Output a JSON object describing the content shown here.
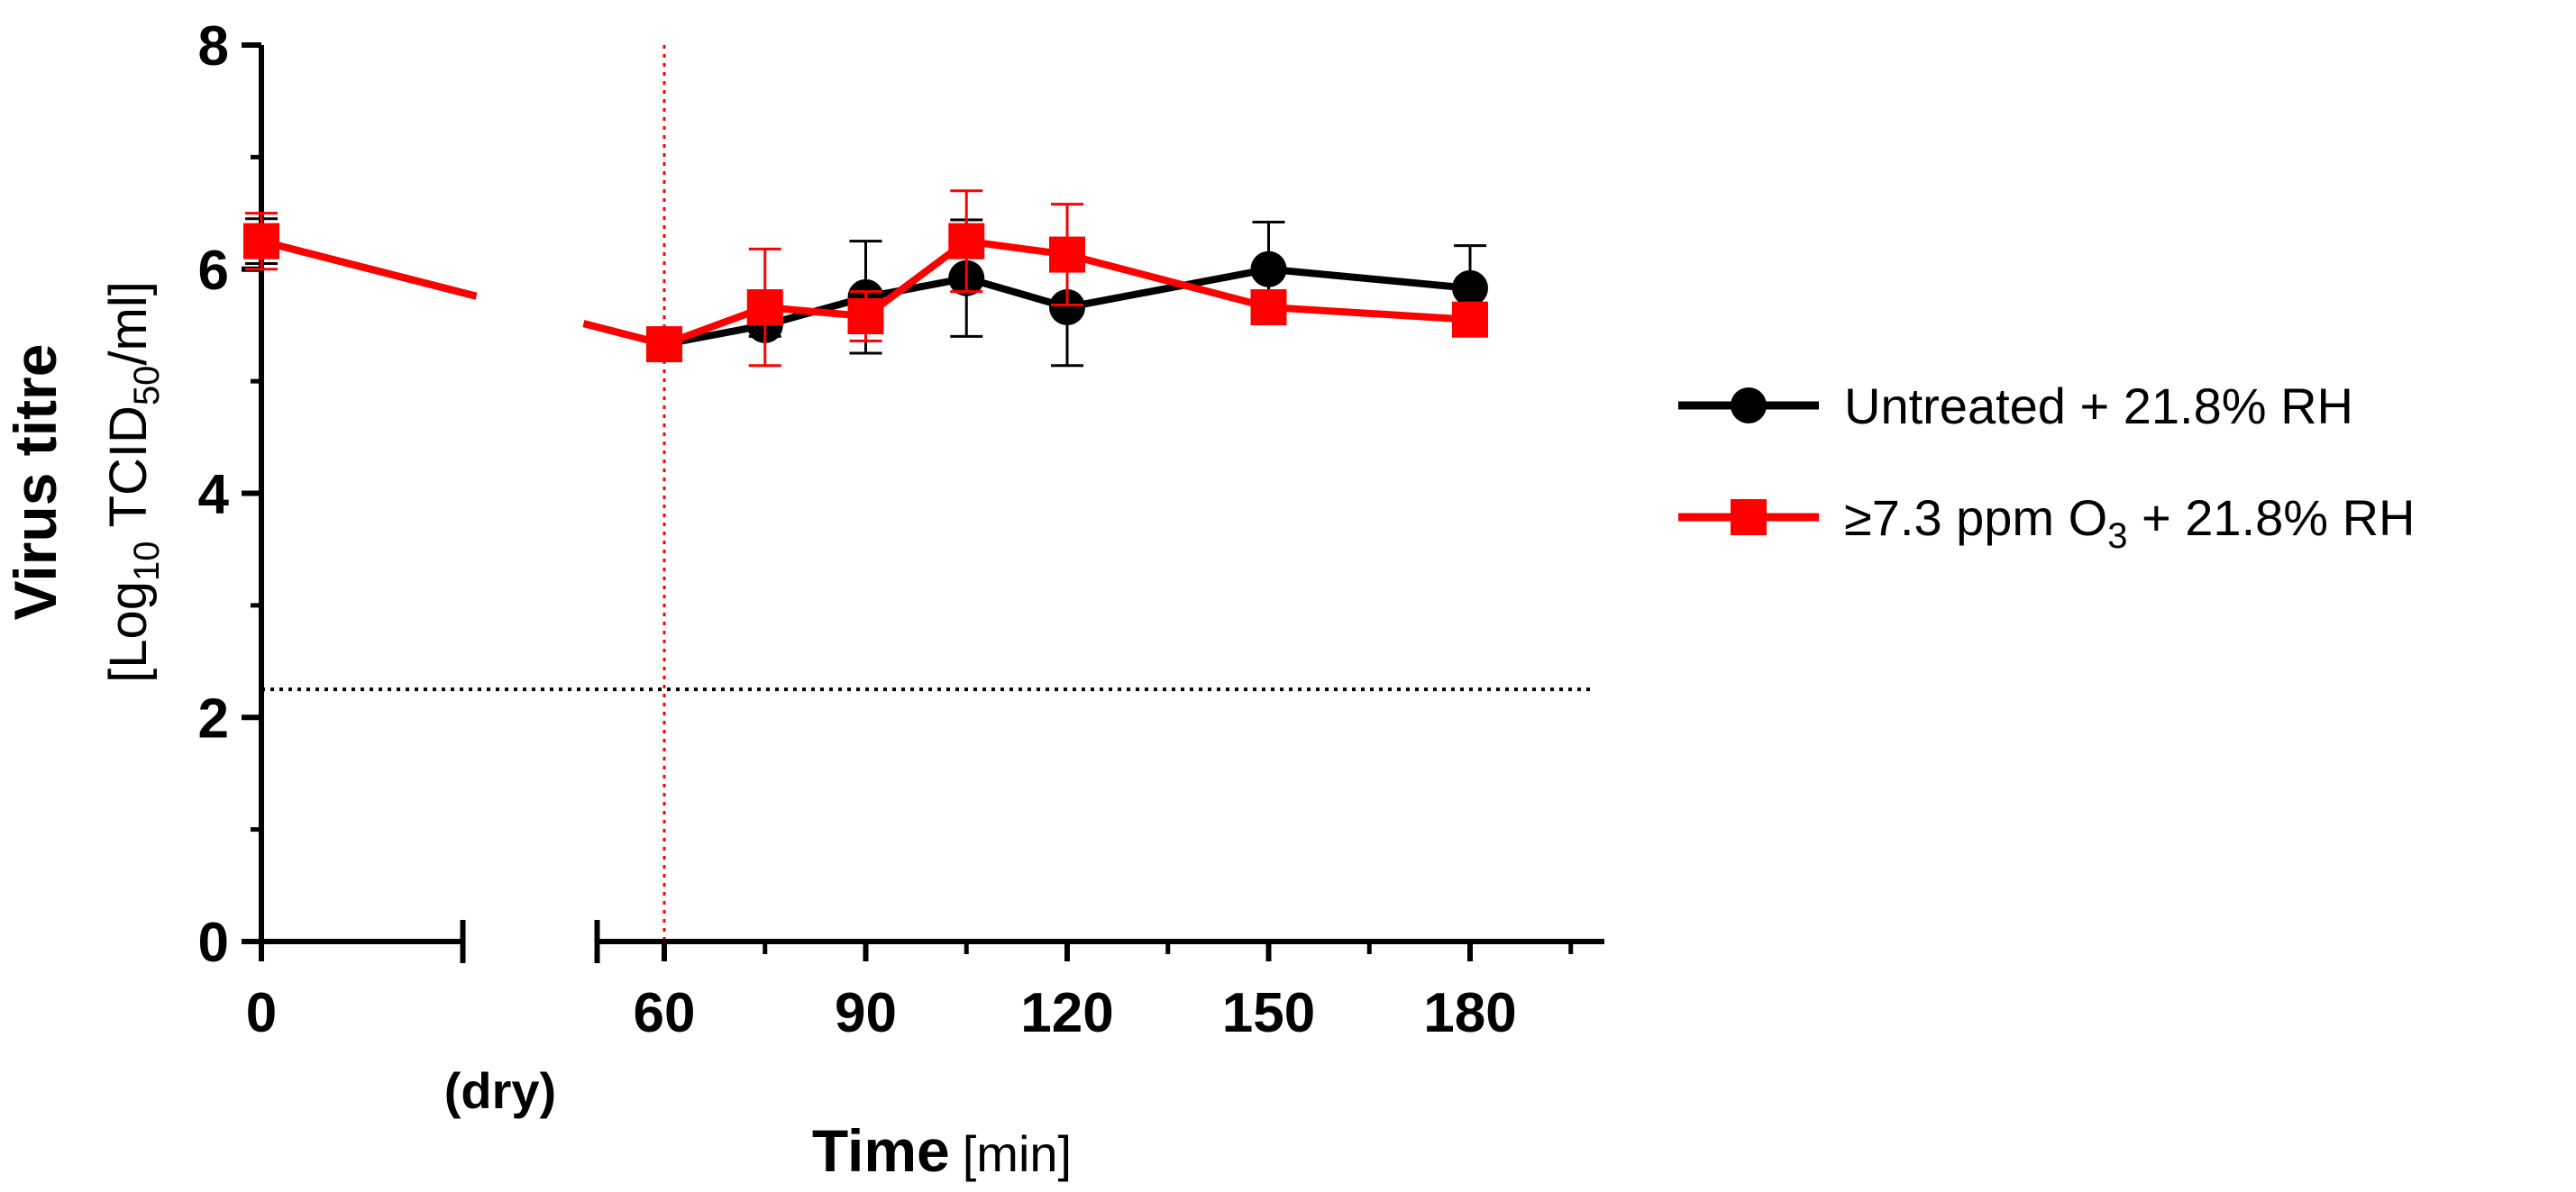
{
  "chart_data": {
    "type": "line",
    "x_axis": {
      "title_main": "Time",
      "title_unit": "[min]",
      "ticks": [
        {
          "value": 0,
          "label": "0"
        },
        {
          "value": 60,
          "label": "60"
        },
        {
          "value": 90,
          "label": "90"
        },
        {
          "value": 120,
          "label": "120"
        },
        {
          "value": 150,
          "label": "150"
        },
        {
          "value": 180,
          "label": "180"
        }
      ],
      "minor_ticks": [
        75,
        105,
        135,
        165,
        195
      ],
      "sublabel": "(dry)",
      "range": [
        0,
        200
      ],
      "break_between": [
        30,
        50
      ]
    },
    "y_axis": {
      "title_main": "Virus titre",
      "title_unit_pre": "[Log",
      "title_unit_sub1": "10",
      "title_unit_mid": " TCID",
      "title_unit_sub2": "50",
      "title_unit_post": "/ml]",
      "ticks": [
        {
          "value": 0,
          "label": "0"
        },
        {
          "value": 2,
          "label": "2"
        },
        {
          "value": 4,
          "label": "4"
        },
        {
          "value": 6,
          "label": "6"
        },
        {
          "value": 8,
          "label": "8"
        }
      ],
      "range": [
        0,
        8
      ]
    },
    "reference_lines": {
      "detection_limit_y": 2.25,
      "dry_time_x": 60
    },
    "series": [
      {
        "name": "Untreated + 21.8% RH",
        "color": "#000000",
        "marker": "circle",
        "points": [
          {
            "x": 0,
            "y": 6.25,
            "err": 0.2
          },
          {
            "x": 60,
            "y": 5.33,
            "err": 0.1
          },
          {
            "x": 75,
            "y": 5.5,
            "err": 0.1
          },
          {
            "x": 90,
            "y": 5.75,
            "err": 0.5
          },
          {
            "x": 105,
            "y": 5.92,
            "err": 0.52
          },
          {
            "x": 120,
            "y": 5.66,
            "err": 0.52
          },
          {
            "x": 150,
            "y": 6.0,
            "err": 0.42
          },
          {
            "x": 180,
            "y": 5.83,
            "err": 0.38
          }
        ]
      },
      {
        "name_pre": "≥7.3 ppm  O",
        "name_sub": "3",
        "name_post": " + 21.8% RH",
        "color": "#ff0000",
        "marker": "square",
        "points": [
          {
            "x": 0,
            "y": 6.25,
            "err": 0.25
          },
          {
            "x": 60,
            "y": 5.33,
            "err": 0.1
          },
          {
            "x": 75,
            "y": 5.66,
            "err": 0.52
          },
          {
            "x": 90,
            "y": 5.58,
            "err": 0.22
          },
          {
            "x": 105,
            "y": 6.25,
            "err": 0.45
          },
          {
            "x": 120,
            "y": 6.13,
            "err": 0.45
          },
          {
            "x": 150,
            "y": 5.66,
            "err": 0.1
          },
          {
            "x": 180,
            "y": 5.55,
            "err": 0.1
          }
        ]
      }
    ]
  }
}
